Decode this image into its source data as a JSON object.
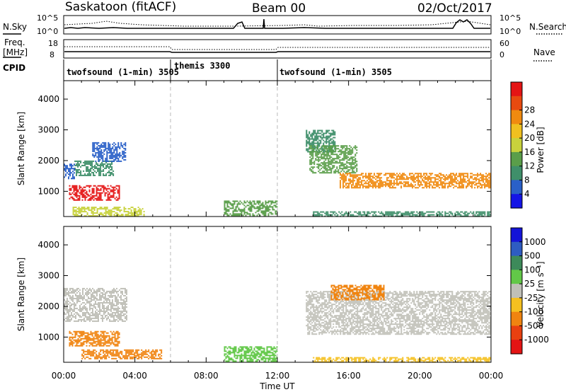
{
  "header": {
    "title": "Saskatoon (fitACF)",
    "beam": "Beam 00",
    "date": "02/Oct/2017"
  },
  "labels": {
    "nsky": "N.Sky",
    "nsearch": "N.Search",
    "freq_line1": "Freq.",
    "freq_line2": "[MHz]",
    "nave": "Nave",
    "cpid": "CPID"
  },
  "noise_panel": {
    "left_ticks": [
      "10^5",
      "10^0"
    ],
    "right_ticks": [
      "10^5",
      "10^0"
    ]
  },
  "freq_panel": {
    "left_ticks": [
      "18",
      "8"
    ],
    "right_ticks": [
      "60",
      "0"
    ]
  },
  "cpid_segments": [
    {
      "label": "twofsound (1-min) 3505",
      "start": 0
    },
    {
      "label": "themis 3300",
      "start": 6
    },
    {
      "label": "twofsound (1-min) 3505",
      "start": 12
    }
  ],
  "colors": {
    "power": [
      "#1414e6",
      "#2a60c8",
      "#3f8f6a",
      "#5a9e4a",
      "#c8d23c",
      "#f0c020",
      "#f08a10",
      "#e84a10",
      "#e41414"
    ],
    "velocity": [
      "#1414d8",
      "#2e5cc2",
      "#3d8a5a",
      "#62c848",
      "#c0c0b8",
      "#f5c020",
      "#f08410",
      "#e84010",
      "#e41414"
    ],
    "ground_scatter": "#c0c0b8"
  },
  "chart_data": [
    {
      "type": "heatmap",
      "name": "power",
      "ylabel": "Slant Range [km]",
      "xlabel": "Time UT",
      "x_ticks": [
        "00:00",
        "04:00",
        "08:00",
        "12:00",
        "16:00",
        "20:00",
        "00:00"
      ],
      "xlim_hours": [
        0,
        24
      ],
      "ylim": [
        180,
        4600
      ],
      "y_ticks": [
        1000,
        2000,
        3000,
        4000
      ],
      "colorbar": {
        "label": "Power [dB]",
        "ticks": [
          "4",
          "8",
          "12",
          "16",
          "20",
          "24",
          "28"
        ],
        "range": [
          0,
          30
        ]
      },
      "regions": [
        {
          "t0": 0.3,
          "t1": 3.1,
          "r0": 700,
          "r1": 1200,
          "value": 27
        },
        {
          "t0": 0.6,
          "t1": 2.8,
          "r0": 1500,
          "r1": 2000,
          "value": 9
        },
        {
          "t0": 1.6,
          "t1": 3.5,
          "r0": 2000,
          "r1": 2600,
          "value": 6
        },
        {
          "t0": 0.0,
          "t1": 0.6,
          "r0": 1400,
          "r1": 1900,
          "value": 5
        },
        {
          "t0": 0.5,
          "t1": 4.5,
          "r0": 200,
          "r1": 500,
          "value": 14
        },
        {
          "t0": 9.0,
          "t1": 12.0,
          "r0": 200,
          "r1": 700,
          "value": 13
        },
        {
          "t0": 13.6,
          "t1": 15.2,
          "r0": 2300,
          "r1": 3000,
          "value": 7
        },
        {
          "t0": 13.8,
          "t1": 16.5,
          "r0": 1600,
          "r1": 2500,
          "value": 12
        },
        {
          "t0": 15.5,
          "t1": 24.0,
          "r0": 1100,
          "r1": 1600,
          "value": 23
        },
        {
          "t0": 14.0,
          "t1": 24.0,
          "r0": 200,
          "r1": 350,
          "value": 8
        }
      ]
    },
    {
      "type": "heatmap",
      "name": "velocity",
      "ylabel": "Slant Range [km]",
      "xlabel": "Time UT",
      "x_ticks": [
        "00:00",
        "04:00",
        "08:00",
        "12:00",
        "16:00",
        "20:00",
        "00:00"
      ],
      "xlim_hours": [
        0,
        24
      ],
      "ylim": [
        180,
        4600
      ],
      "y_ticks": [
        1000,
        2000,
        3000,
        4000
      ],
      "colorbar": {
        "label": "Velocity [m s⁻¹]",
        "ticks": [
          "1000",
          "500",
          "100",
          "25",
          "-25",
          "-100",
          "-500",
          "-1000"
        ]
      },
      "regions": [
        {
          "t0": 0.3,
          "t1": 3.1,
          "r0": 700,
          "r1": 1200,
          "value": -300
        },
        {
          "t0": 0.0,
          "t1": 3.5,
          "r0": 1500,
          "r1": 2600,
          "value": 0
        },
        {
          "t0": 1.0,
          "t1": 5.5,
          "r0": 300,
          "r1": 600,
          "value": -200
        },
        {
          "t0": 9.0,
          "t1": 12.0,
          "r0": 200,
          "r1": 700,
          "value": 60
        },
        {
          "t0": 13.6,
          "t1": 24.0,
          "r0": 1100,
          "r1": 2500,
          "value": 0
        },
        {
          "t0": 15.0,
          "t1": 18.0,
          "r0": 2200,
          "r1": 2700,
          "value": -300
        },
        {
          "t0": 14.0,
          "t1": 24.0,
          "r0": 200,
          "r1": 350,
          "value": -60
        }
      ]
    }
  ]
}
